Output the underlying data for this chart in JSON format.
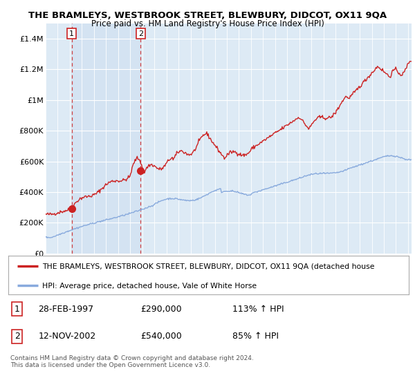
{
  "title": "THE BRAMLEYS, WESTBROOK STREET, BLEWBURY, DIDCOT, OX11 9QA",
  "subtitle": "Price paid vs. HM Land Registry's House Price Index (HPI)",
  "background_color": "#ffffff",
  "plot_bg_color": "#ddeaf5",
  "plot_bg_light": "#e8f2fa",
  "red_line_color": "#cc2222",
  "blue_line_color": "#88aadd",
  "grid_color": "#ffffff",
  "ann1_x": 1997.15,
  "ann1_y": 290000,
  "ann2_x": 2002.87,
  "ann2_y": 540000,
  "legend_red": "THE BRAMLEYS, WESTBROOK STREET, BLEWBURY, DIDCOT, OX11 9QA (detached house",
  "legend_blue": "HPI: Average price, detached house, Vale of White Horse",
  "table_row1": [
    "1",
    "28-FEB-1997",
    "£290,000",
    "113% ↑ HPI"
  ],
  "table_row2": [
    "2",
    "12-NOV-2002",
    "£540,000",
    "85% ↑ HPI"
  ],
  "footer": "Contains HM Land Registry data © Crown copyright and database right 2024.\nThis data is licensed under the Open Government Licence v3.0.",
  "ylim": [
    0,
    1500000
  ],
  "yticks": [
    0,
    200000,
    400000,
    600000,
    800000,
    1000000,
    1200000,
    1400000
  ],
  "ytick_labels": [
    "£0",
    "£200K",
    "£400K",
    "£600K",
    "£800K",
    "£1M",
    "£1.2M",
    "£1.4M"
  ],
  "xlim": [
    1995,
    2025.3
  ]
}
